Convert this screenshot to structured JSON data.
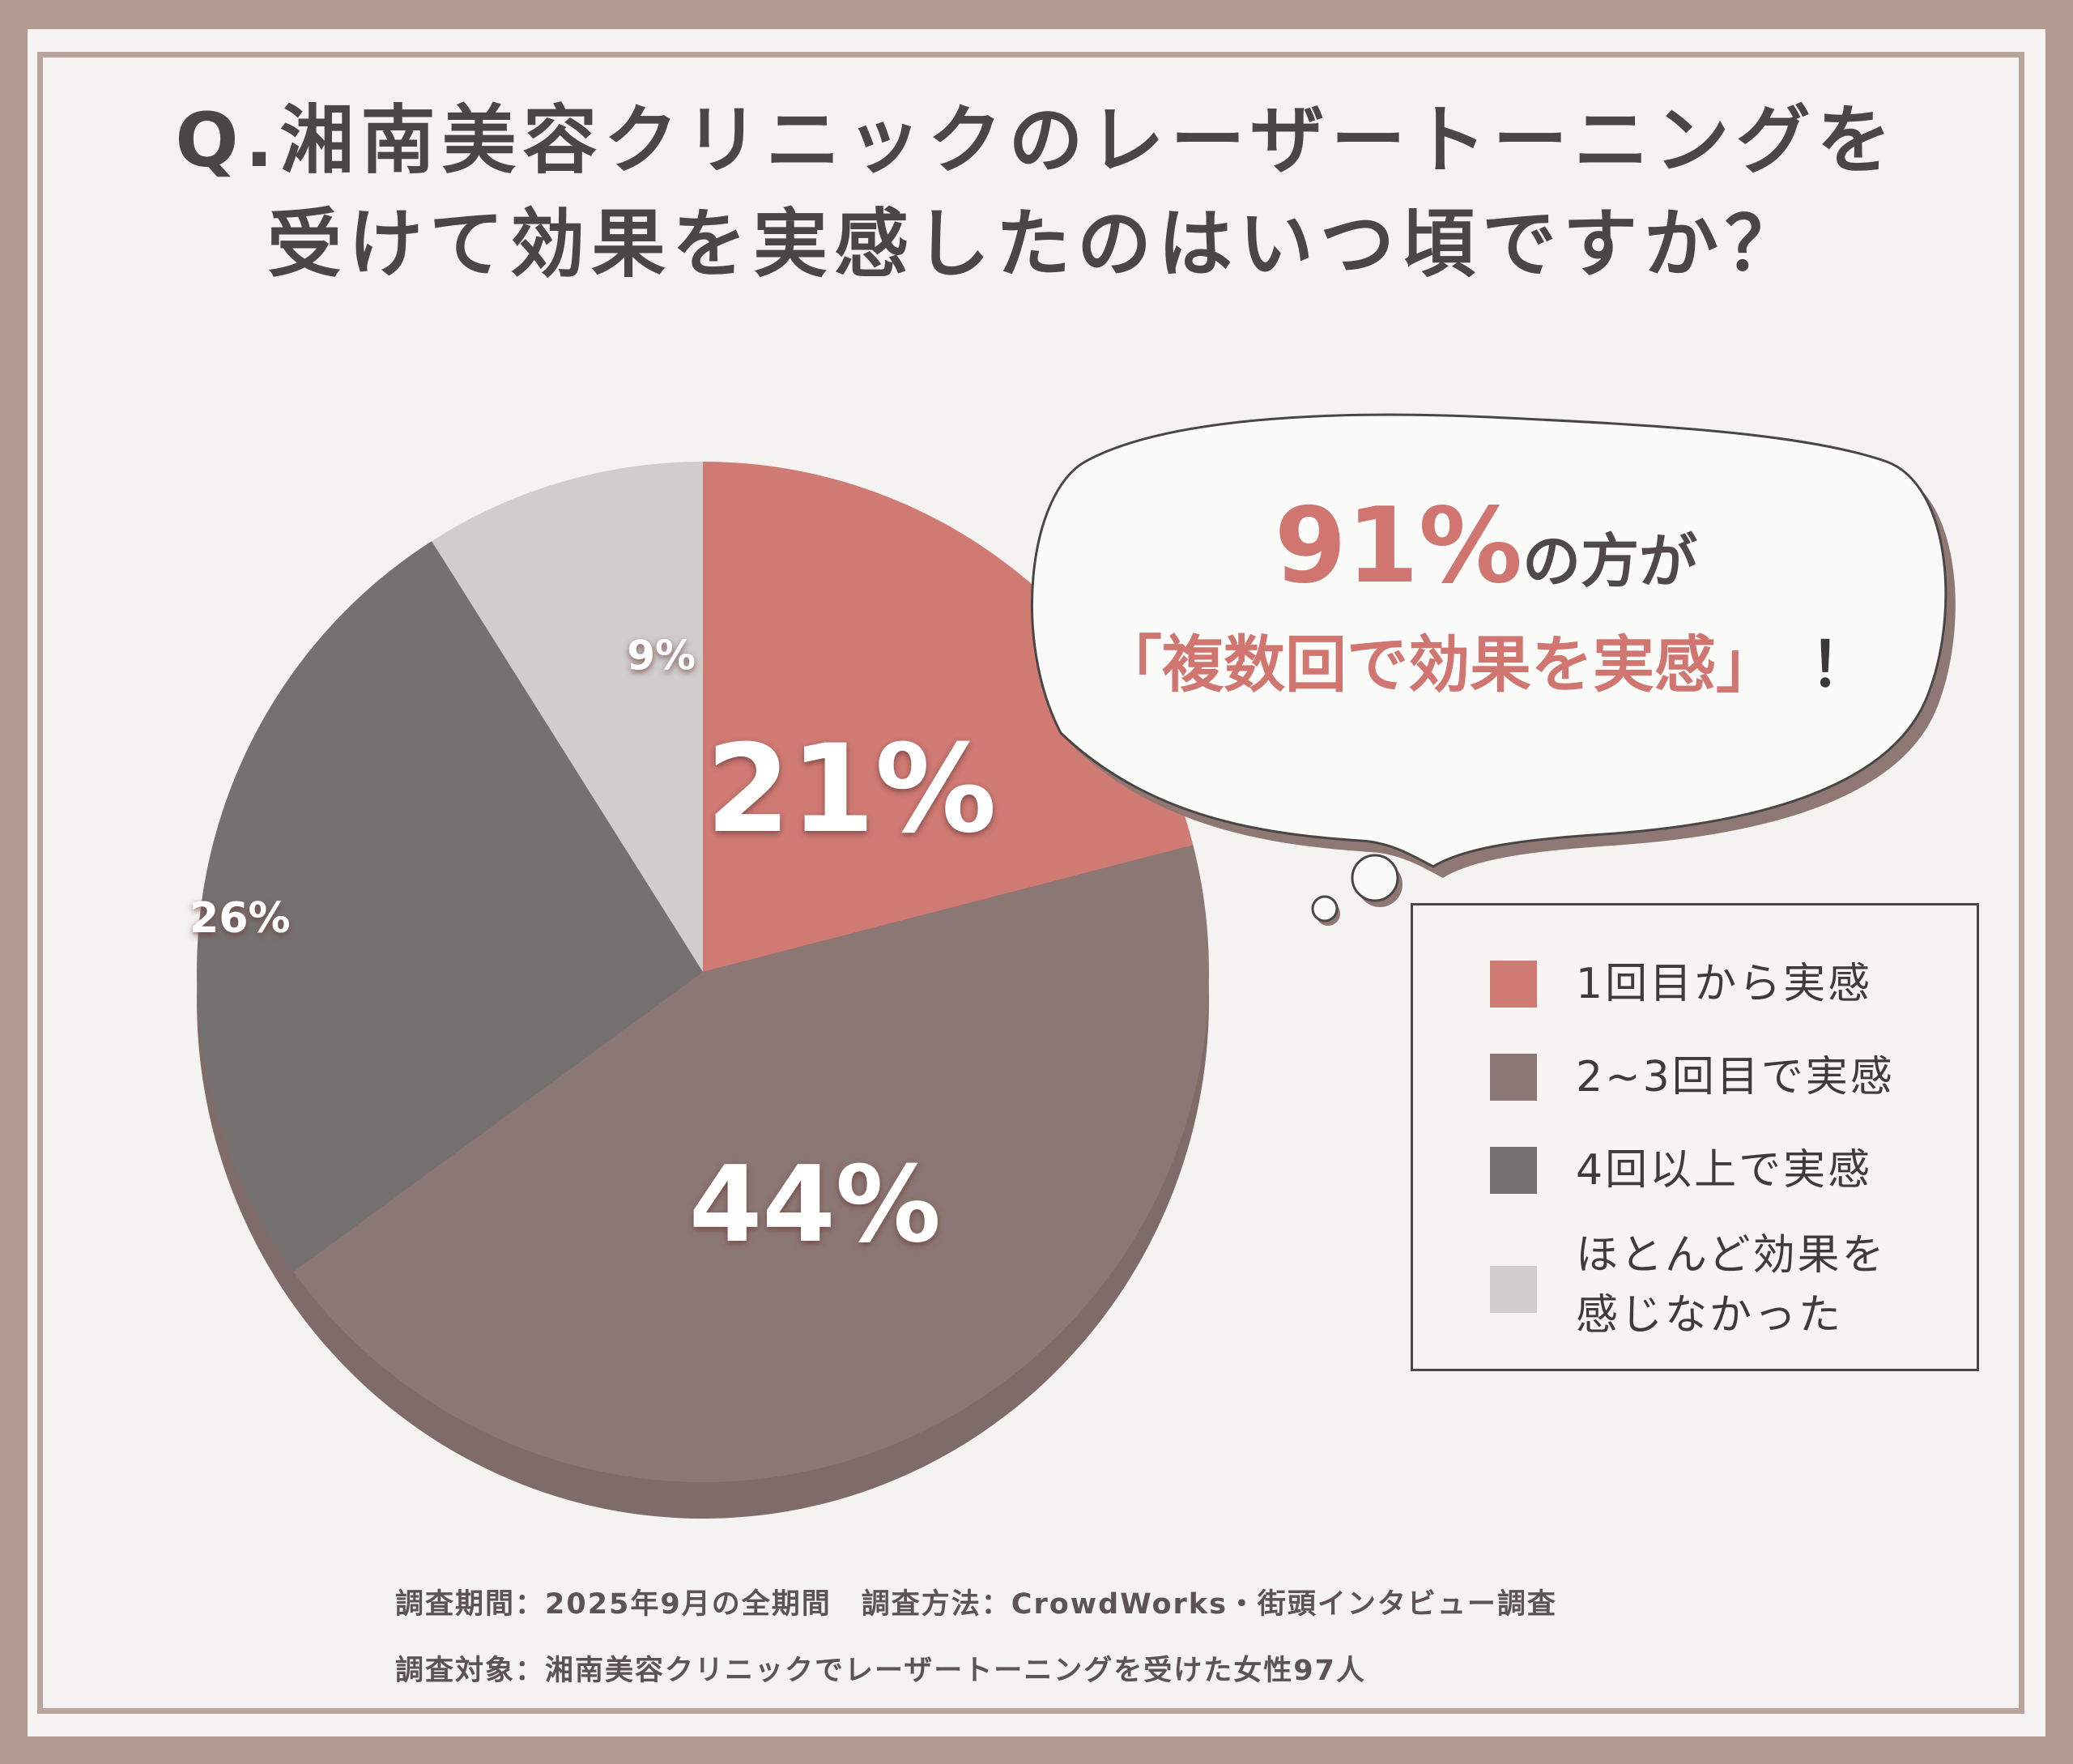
{
  "title": {
    "line1": "Q.湘南美容クリニックのレーザートーニングを",
    "line2": "受けて効果を実感したのはいつ頃ですか？"
  },
  "chart_data": {
    "type": "pie",
    "categories": [
      "1回目から実感",
      "2~3回目で実感",
      "4回以上で実感",
      "ほとんど効果を感じなかった"
    ],
    "values": [
      21,
      44,
      26,
      9
    ],
    "data_labels": [
      "21%",
      "44%",
      "26%",
      "9%"
    ],
    "colors": [
      "#d07a74",
      "#8b7774",
      "#757170",
      "#cfcecd"
    ],
    "legend_position": "right"
  },
  "callout": {
    "highlight": "91%",
    "line1_suffix": "の方が",
    "line2": "「複数回で効果を実感」",
    "exclamation": "！"
  },
  "legend": {
    "items": [
      {
        "label": "1回目から実感",
        "color": "#d07a74"
      },
      {
        "label": "2~3回目で実感",
        "color": "#8b7774"
      },
      {
        "label": "4回以上で実感",
        "color": "#757170"
      },
      {
        "label": "ほとんど効果を\n感じなかった",
        "color": "#cfcecd"
      }
    ]
  },
  "footnote": {
    "line1": "調査期間：2025年9月の全期間　調査方法：CrowdWorks・街頭インタビュー調査",
    "line2": "調査対象：湘南美容クリニックでレーザートーニングを受けた女性97人"
  }
}
